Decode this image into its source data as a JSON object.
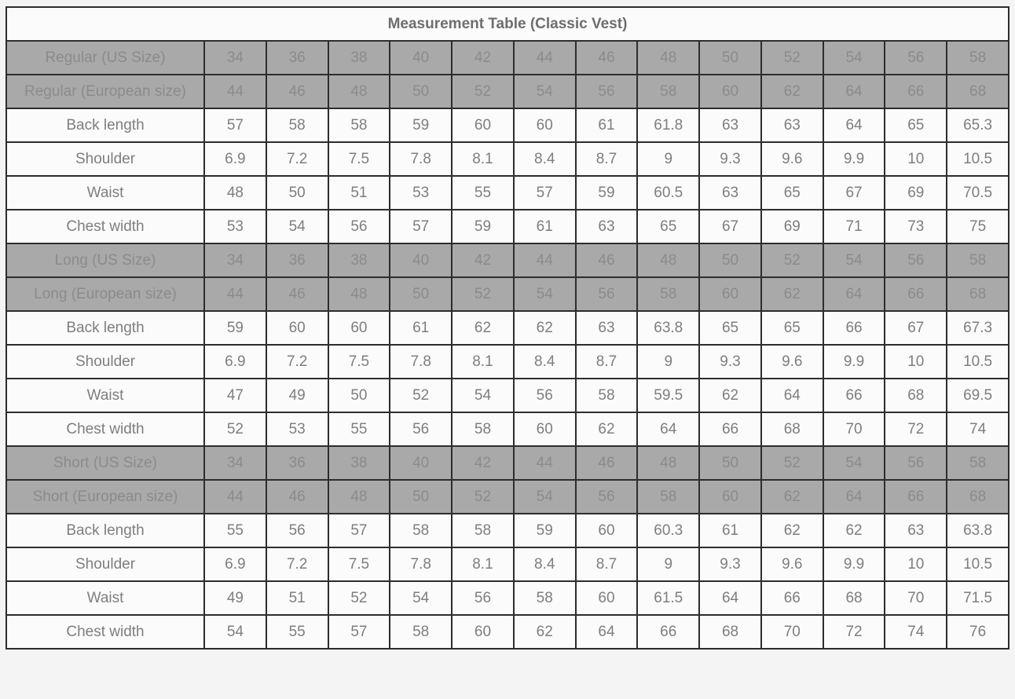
{
  "title": "Measurement Table (Classic Vest)",
  "colors": {
    "page_background": "#f4f4f4",
    "border": "#2d2d2d",
    "gray_row_background": "#a9a9a9",
    "gray_row_text": "#8b8b8b",
    "white_row_background": "#fbfbfb",
    "white_row_text": "#7e7e7e",
    "title_text": "#6e6e6e"
  },
  "chart_data": {
    "type": "table",
    "title": "Measurement Table (Classic Vest)",
    "columns_per_row": 13,
    "rows": [
      {
        "label": "Regular (US Size)",
        "header": true,
        "values": [
          "34",
          "36",
          "38",
          "40",
          "42",
          "44",
          "46",
          "48",
          "50",
          "52",
          "54",
          "56",
          "58"
        ]
      },
      {
        "label": "Regular (European size)",
        "header": true,
        "values": [
          "44",
          "46",
          "48",
          "50",
          "52",
          "54",
          "56",
          "58",
          "60",
          "62",
          "64",
          "66",
          "68"
        ]
      },
      {
        "label": "Back length",
        "header": false,
        "values": [
          "57",
          "58",
          "58",
          "59",
          "60",
          "60",
          "61",
          "61.8",
          "63",
          "63",
          "64",
          "65",
          "65.3"
        ]
      },
      {
        "label": "Shoulder",
        "header": false,
        "values": [
          "6.9",
          "7.2",
          "7.5",
          "7.8",
          "8.1",
          "8.4",
          "8.7",
          "9",
          "9.3",
          "9.6",
          "9.9",
          "10",
          "10.5"
        ]
      },
      {
        "label": "Waist",
        "header": false,
        "values": [
          "48",
          "50",
          "51",
          "53",
          "55",
          "57",
          "59",
          "60.5",
          "63",
          "65",
          "67",
          "69",
          "70.5"
        ]
      },
      {
        "label": "Chest width",
        "header": false,
        "values": [
          "53",
          "54",
          "56",
          "57",
          "59",
          "61",
          "63",
          "65",
          "67",
          "69",
          "71",
          "73",
          "75"
        ]
      },
      {
        "label": "Long (US Size)",
        "header": true,
        "values": [
          "34",
          "36",
          "38",
          "40",
          "42",
          "44",
          "46",
          "48",
          "50",
          "52",
          "54",
          "56",
          "58"
        ]
      },
      {
        "label": "Long (European size)",
        "header": true,
        "values": [
          "44",
          "46",
          "48",
          "50",
          "52",
          "54",
          "56",
          "58",
          "60",
          "62",
          "64",
          "66",
          "68"
        ]
      },
      {
        "label": "Back length",
        "header": false,
        "values": [
          "59",
          "60",
          "60",
          "61",
          "62",
          "62",
          "63",
          "63.8",
          "65",
          "65",
          "66",
          "67",
          "67.3"
        ]
      },
      {
        "label": "Shoulder",
        "header": false,
        "values": [
          "6.9",
          "7.2",
          "7.5",
          "7.8",
          "8.1",
          "8.4",
          "8.7",
          "9",
          "9.3",
          "9.6",
          "9.9",
          "10",
          "10.5"
        ]
      },
      {
        "label": "Waist",
        "header": false,
        "values": [
          "47",
          "49",
          "50",
          "52",
          "54",
          "56",
          "58",
          "59.5",
          "62",
          "64",
          "66",
          "68",
          "69.5"
        ]
      },
      {
        "label": "Chest width",
        "header": false,
        "values": [
          "52",
          "53",
          "55",
          "56",
          "58",
          "60",
          "62",
          "64",
          "66",
          "68",
          "70",
          "72",
          "74"
        ]
      },
      {
        "label": "Short (US Size)",
        "header": true,
        "values": [
          "34",
          "36",
          "38",
          "40",
          "42",
          "44",
          "46",
          "48",
          "50",
          "52",
          "54",
          "56",
          "58"
        ]
      },
      {
        "label": "Short (European size)",
        "header": true,
        "values": [
          "44",
          "46",
          "48",
          "50",
          "52",
          "54",
          "56",
          "58",
          "60",
          "62",
          "64",
          "66",
          "68"
        ]
      },
      {
        "label": "Back length",
        "header": false,
        "values": [
          "55",
          "56",
          "57",
          "58",
          "58",
          "59",
          "60",
          "60.3",
          "61",
          "62",
          "62",
          "63",
          "63.8"
        ]
      },
      {
        "label": "Shoulder",
        "header": false,
        "values": [
          "6.9",
          "7.2",
          "7.5",
          "7.8",
          "8.1",
          "8.4",
          "8.7",
          "9",
          "9.3",
          "9.6",
          "9.9",
          "10",
          "10.5"
        ]
      },
      {
        "label": "Waist",
        "header": false,
        "values": [
          "49",
          "51",
          "52",
          "54",
          "56",
          "58",
          "60",
          "61.5",
          "64",
          "66",
          "68",
          "70",
          "71.5"
        ]
      },
      {
        "label": "Chest width",
        "header": false,
        "values": [
          "54",
          "55",
          "57",
          "58",
          "60",
          "62",
          "64",
          "66",
          "68",
          "70",
          "72",
          "74",
          "76"
        ]
      }
    ]
  }
}
